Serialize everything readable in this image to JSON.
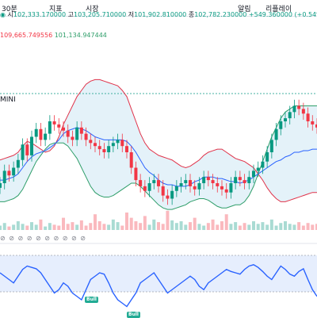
{
  "toolbar": {
    "items": [
      "30분",
      "지표",
      "시장",
      "알림",
      "리플레이"
    ]
  },
  "ohlc": {
    "open_label": "시",
    "open": "102,333.170000",
    "high_label": "고",
    "high": "103,205.710000",
    "low_label": "저",
    "low": "101,902.810000",
    "close_label": "종",
    "close": "102,782.230000",
    "change": "+549.360000 (+0.54%)"
  },
  "bb": {
    "upper": "109,665.749556",
    "lower": "101,134.947444"
  },
  "symbol_fragment": "MINI",
  "signals": [
    {
      "label": "Bull"
    },
    {
      "label": "Bull"
    }
  ],
  "colors": {
    "up": "#089981",
    "down": "#f23645",
    "band_upper": "#e0334a",
    "band_lower": "#2f9e6a",
    "band_mid": "#2962ff",
    "band_fill": "#d8ecf7",
    "osc_line": "#2962ff",
    "osc_fill": "#d6e2fb"
  },
  "chart_data": {
    "type": "candlestick",
    "bb_upper": [
      35,
      36,
      37,
      38,
      40,
      44,
      47,
      46,
      44,
      42,
      40,
      41,
      44,
      50,
      58,
      64,
      70,
      76,
      80,
      84,
      86,
      87,
      87,
      86,
      85,
      84,
      83,
      80,
      76,
      68,
      60,
      52,
      46,
      42,
      40,
      38,
      37,
      36,
      35,
      33,
      31,
      30,
      31,
      33,
      35,
      38,
      40,
      41,
      42,
      42,
      40,
      38,
      36,
      35,
      34,
      32,
      30,
      26,
      22,
      17,
      13,
      10,
      8,
      8,
      9,
      10,
      11,
      12,
      13,
      14,
      14
    ],
    "bb_lower": [
      8,
      8,
      9,
      10,
      12,
      16,
      22,
      28,
      34,
      38,
      42,
      45,
      46,
      46,
      46,
      44,
      40,
      36,
      30,
      24,
      18,
      14,
      12,
      11,
      11,
      12,
      14,
      16,
      18,
      20,
      20,
      18,
      15,
      12,
      9,
      6,
      4,
      3,
      3,
      4,
      5,
      6,
      8,
      9,
      10,
      10,
      9,
      7,
      5,
      4,
      4,
      5,
      6,
      6,
      8,
      12,
      18,
      26,
      34,
      42,
      50,
      56,
      62,
      66,
      68,
      70,
      70,
      70,
      70,
      70,
      70
    ],
    "bb_mid": [
      22,
      22,
      23,
      24,
      26,
      30,
      34,
      37,
      39,
      40,
      41,
      43,
      45,
      48,
      52,
      54,
      55,
      56,
      55,
      54,
      52,
      50,
      49,
      48,
      48,
      48,
      48,
      48,
      47,
      44,
      40,
      35,
      30,
      27,
      25,
      22,
      20,
      19,
      19,
      18,
      18,
      18,
      19,
      21,
      22,
      24,
      24,
      24,
      23,
      23,
      22,
      21,
      21,
      20,
      21,
      22,
      24,
      26,
      28,
      30,
      32,
      34,
      35,
      37,
      38,
      40,
      40,
      41,
      41,
      42,
      42
    ],
    "closes": [
      20,
      28,
      25,
      30,
      35,
      45,
      38,
      50,
      55,
      48,
      52,
      60,
      58,
      56,
      54,
      50,
      48,
      56,
      52,
      48,
      46,
      44,
      42,
      40,
      44,
      46,
      48,
      44,
      40,
      30,
      22,
      18,
      15,
      20,
      22,
      18,
      12,
      10,
      15,
      18,
      20,
      22,
      18,
      16,
      20,
      24,
      22,
      20,
      18,
      16,
      14,
      20,
      24,
      22,
      20,
      24,
      28,
      30,
      34,
      40,
      48,
      55,
      60,
      62,
      66,
      70,
      68,
      65,
      60,
      58,
      56
    ],
    "volumes": [
      5,
      8,
      4,
      6,
      10,
      7,
      5,
      9,
      6,
      12,
      4,
      8,
      6,
      5,
      14,
      7,
      9,
      6,
      11,
      5,
      8,
      18,
      10,
      7,
      6,
      12,
      9,
      5,
      20,
      14,
      10,
      8,
      16,
      6,
      12,
      9,
      7,
      22,
      11,
      8,
      10,
      6,
      9,
      14,
      7,
      5,
      8,
      12,
      6,
      10,
      18,
      7,
      9,
      5,
      8,
      6,
      10,
      7,
      9,
      6,
      12,
      5,
      8,
      10,
      7,
      6,
      9,
      5,
      8,
      6,
      7
    ],
    "oscillator": [
      60,
      55,
      50,
      45,
      55,
      65,
      70,
      68,
      66,
      60,
      50,
      40,
      30,
      35,
      45,
      40,
      30,
      25,
      20,
      35,
      50,
      55,
      60,
      58,
      45,
      30,
      20,
      15,
      10,
      20,
      30,
      45,
      50,
      55,
      60,
      50,
      40,
      30,
      35,
      40,
      45,
      50,
      55,
      50,
      40,
      35,
      45,
      50,
      55,
      60,
      65,
      62,
      60,
      58,
      65,
      70,
      72,
      68,
      62,
      55,
      50,
      60,
      70,
      65,
      58,
      55,
      62,
      66,
      50,
      35,
      25
    ]
  }
}
